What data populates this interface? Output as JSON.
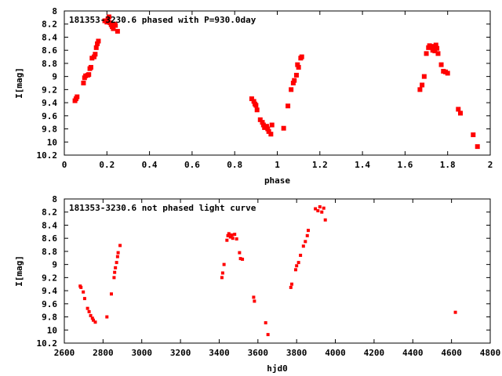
{
  "chart_data": [
    {
      "type": "scatter",
      "title": "181353-3230.6 phased with P=930.0day",
      "xlabel": "phase",
      "ylabel": "I[mag]",
      "xlim": [
        0,
        2
      ],
      "ylim": [
        10.2,
        8
      ],
      "y_inverted": true,
      "x_ticks": [
        "0",
        "0.2",
        "0.4",
        "0.6",
        "0.8",
        "1",
        "1.2",
        "1.4",
        "1.6",
        "1.8",
        "2"
      ],
      "y_ticks": [
        "8",
        "8.2",
        "8.4",
        "8.6",
        "8.8",
        "9",
        "9.2",
        "9.4",
        "9.6",
        "9.8",
        "10",
        "10.2"
      ],
      "series": [
        {
          "color": "#ff0000",
          "marker": "large-point",
          "x": [
            0.05,
            0.055,
            0.06,
            0.09,
            0.095,
            0.1,
            0.11,
            0.115,
            0.12,
            0.125,
            0.13,
            0.14,
            0.145,
            0.15,
            0.155,
            0.16,
            0.19,
            0.2,
            0.205,
            0.21,
            0.215,
            0.22,
            0.225,
            0.23,
            0.235,
            0.24,
            0.25,
            0.88,
            0.89,
            0.895,
            0.9,
            0.905,
            0.92,
            0.93,
            0.935,
            0.94,
            0.95,
            0.955,
            0.96,
            0.97,
            0.975,
            1.03,
            1.05,
            1.065,
            1.075,
            1.08,
            1.09,
            1.095,
            1.1,
            1.11,
            1.115,
            1.67,
            1.68,
            1.69,
            1.7,
            1.71,
            1.715,
            1.72,
            1.73,
            1.735,
            1.74,
            1.745,
            1.75,
            1.755,
            1.77,
            1.78,
            1.79,
            1.8,
            1.85,
            1.86,
            1.92,
            1.94
          ],
          "y": [
            9.37,
            9.34,
            9.31,
            9.1,
            9.02,
            8.99,
            8.98,
            8.97,
            8.88,
            8.86,
            8.72,
            8.7,
            8.66,
            8.56,
            8.5,
            8.46,
            8.15,
            8.17,
            8.12,
            8.09,
            8.18,
            8.21,
            8.24,
            8.27,
            8.2,
            8.22,
            8.31,
            9.34,
            9.38,
            9.42,
            9.44,
            9.51,
            9.66,
            9.7,
            9.74,
            9.78,
            9.76,
            9.8,
            9.84,
            9.88,
            9.74,
            9.79,
            9.45,
            9.2,
            9.1,
            9.06,
            8.98,
            8.82,
            8.86,
            8.72,
            8.7,
            9.2,
            9.13,
            9.0,
            8.65,
            8.56,
            8.53,
            8.55,
            8.6,
            8.54,
            8.61,
            8.52,
            8.57,
            8.65,
            8.82,
            8.92,
            8.93,
            8.95,
            9.5,
            9.56,
            9.89,
            10.07
          ]
        }
      ]
    },
    {
      "type": "scatter",
      "title": "181353-3230.6 not phased light curve",
      "xlabel": "hjd0",
      "ylabel": "I[mag]",
      "xlim": [
        2600,
        4800
      ],
      "ylim": [
        10.2,
        8
      ],
      "y_inverted": true,
      "x_ticks": [
        "2600",
        "2800",
        "3000",
        "3200",
        "3400",
        "3600",
        "3800",
        "4000",
        "4200",
        "4400",
        "4600",
        "4800"
      ],
      "y_ticks": [
        "8",
        "8.2",
        "8.4",
        "8.6",
        "8.8",
        "9",
        "9.2",
        "9.4",
        "9.6",
        "9.8",
        "10",
        "10.2"
      ],
      "series": [
        {
          "color": "#ff0000",
          "marker": "small-point",
          "x": [
            2682,
            2686,
            2698,
            2705,
            2720,
            2728,
            2736,
            2745,
            2750,
            2760,
            2820,
            2843,
            2857,
            2860,
            2864,
            2870,
            2875,
            2878,
            2888,
            3414,
            3418,
            3425,
            3440,
            3445,
            3450,
            3458,
            3465,
            3470,
            3480,
            3490,
            3505,
            3510,
            3520,
            3578,
            3582,
            3640,
            3652,
            3770,
            3775,
            3795,
            3800,
            3810,
            3820,
            3835,
            3845,
            3855,
            3860,
            3897,
            3910,
            3920,
            3930,
            3940,
            3948,
            4620
          ],
          "y": [
            9.33,
            9.35,
            9.42,
            9.52,
            9.67,
            9.72,
            9.78,
            9.82,
            9.85,
            9.88,
            9.8,
            9.45,
            9.2,
            9.12,
            9.05,
            8.97,
            8.88,
            8.82,
            8.71,
            9.2,
            9.13,
            9.0,
            8.63,
            8.56,
            8.53,
            8.58,
            8.55,
            8.6,
            8.54,
            8.61,
            8.82,
            8.91,
            8.92,
            9.5,
            9.56,
            9.89,
            10.07,
            9.35,
            9.3,
            9.08,
            9.02,
            8.97,
            8.86,
            8.72,
            8.65,
            8.56,
            8.48,
            8.15,
            8.18,
            8.12,
            8.2,
            8.14,
            8.32,
            9.73
          ]
        }
      ]
    }
  ]
}
